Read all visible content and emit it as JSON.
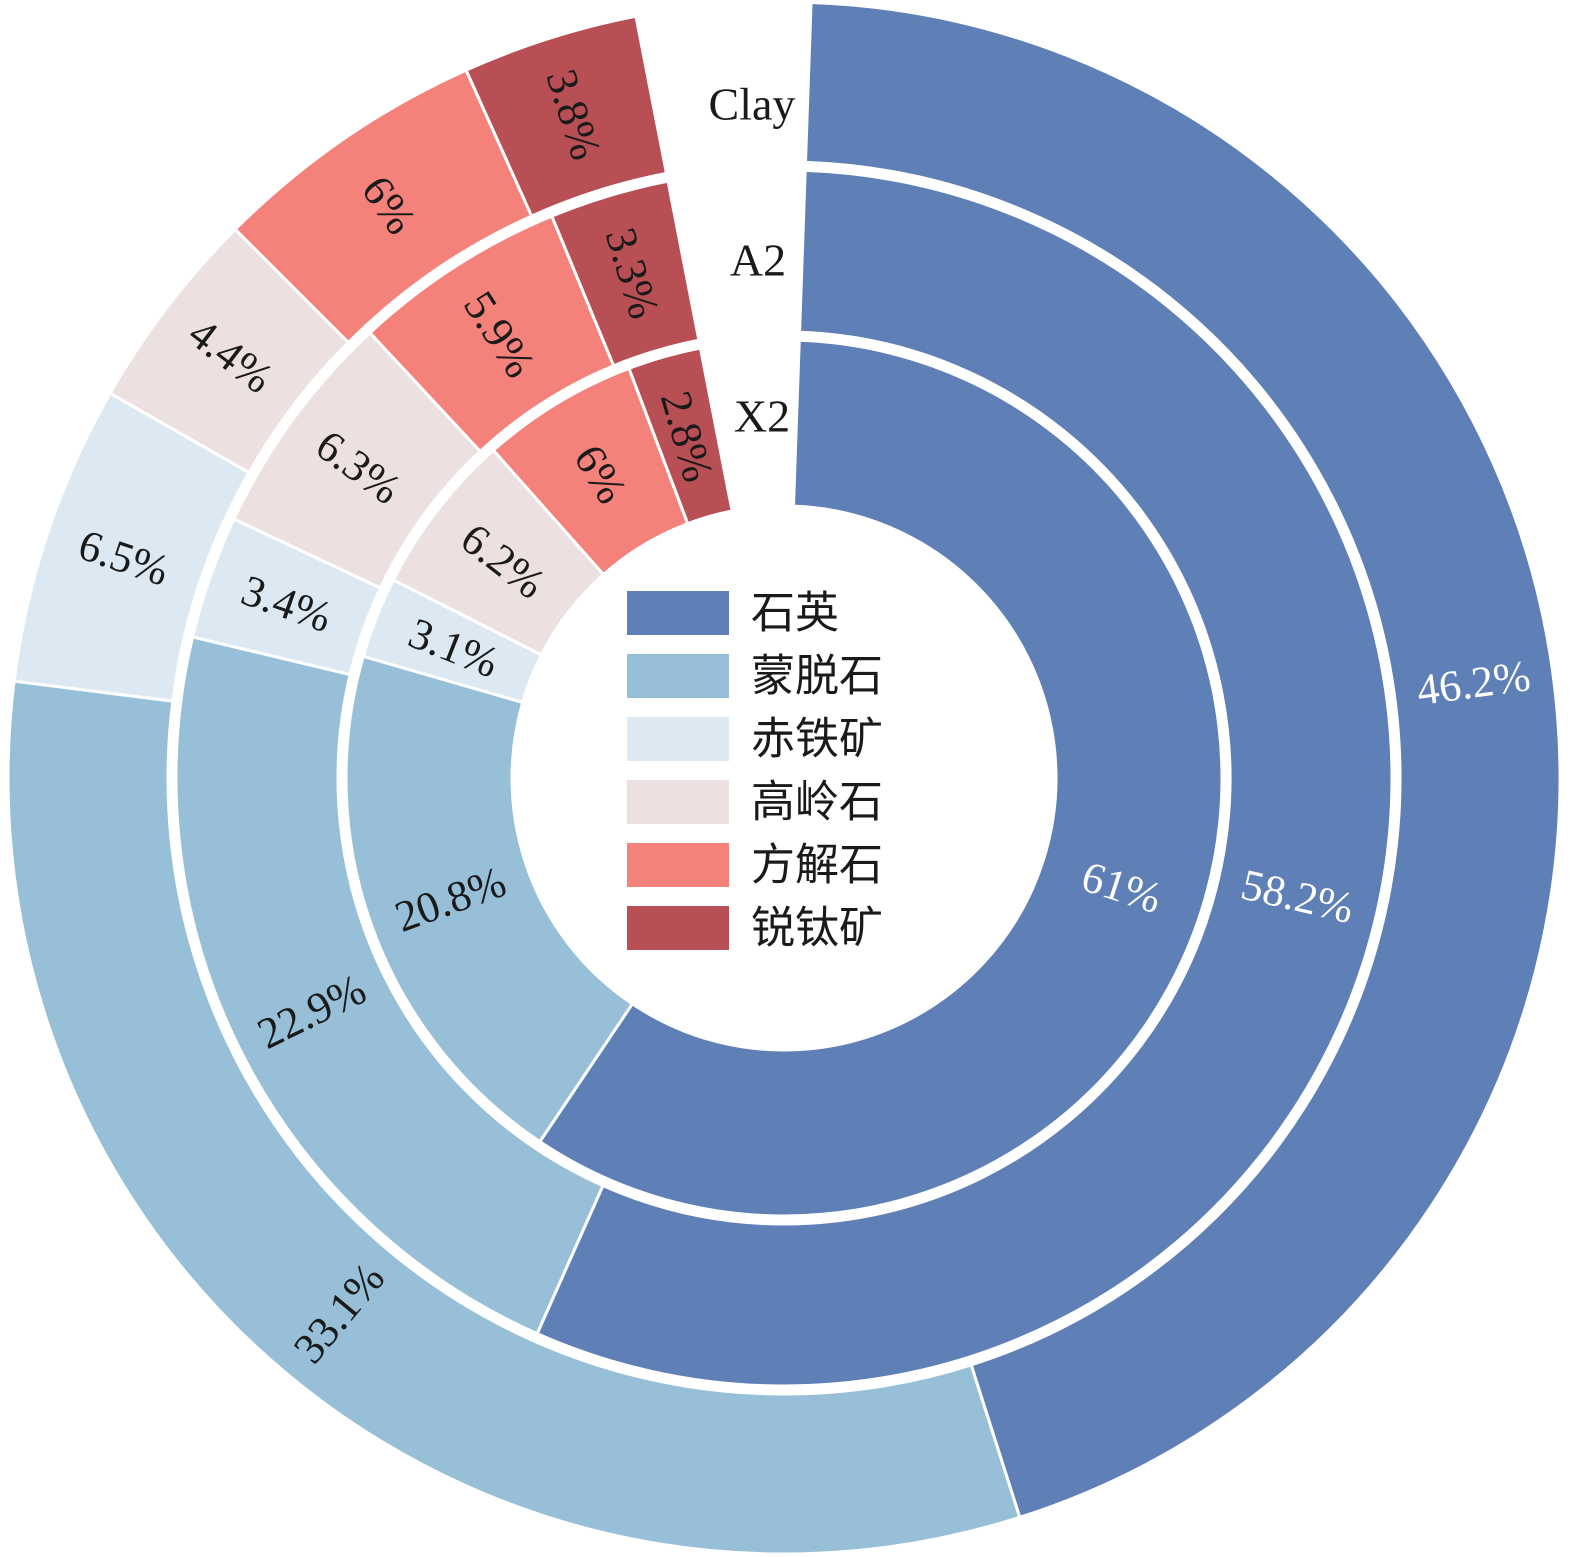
{
  "chart_data": {
    "type": "pie",
    "variant": "nested-donut",
    "title": "",
    "categories": [
      "石英",
      "蒙脱石",
      "赤铁矿",
      "高岭石",
      "方解石",
      "锐钛矿"
    ],
    "colors": [
      "#5f7fb7",
      "#97c0d8",
      "#dce9f3",
      "#ece0e0",
      "#f4817a",
      "#b74f55"
    ],
    "label_colors": [
      "#ffffff",
      "#1a1a1a",
      "#1a1a1a",
      "#1a1a1a",
      "#1a1a1a",
      "#1a1a1a"
    ],
    "start_angle_deg": 2,
    "gap_angle_deg": 13,
    "legend_position": "center",
    "series": [
      {
        "name": "X2",
        "values": [
          61,
          20.8,
          3.1,
          6.2,
          6,
          2.8
        ],
        "labels": [
          "61%",
          "20.8%",
          "3.1%",
          "6.2%",
          "6%",
          "2.8%"
        ]
      },
      {
        "name": "A2",
        "values": [
          58.2,
          22.9,
          3.4,
          6.3,
          5.9,
          3.3
        ],
        "labels": [
          "58.2%",
          "22.9%",
          "3.4%",
          "6.3%",
          "5.9%",
          "3.3%"
        ]
      },
      {
        "name": "Clay",
        "values": [
          46.2,
          33.1,
          6.5,
          4.4,
          6,
          3.8
        ],
        "labels": [
          "46.2%",
          "33.1%",
          "6.5%",
          "4.4%",
          "6%",
          "3.8%"
        ]
      }
    ]
  }
}
